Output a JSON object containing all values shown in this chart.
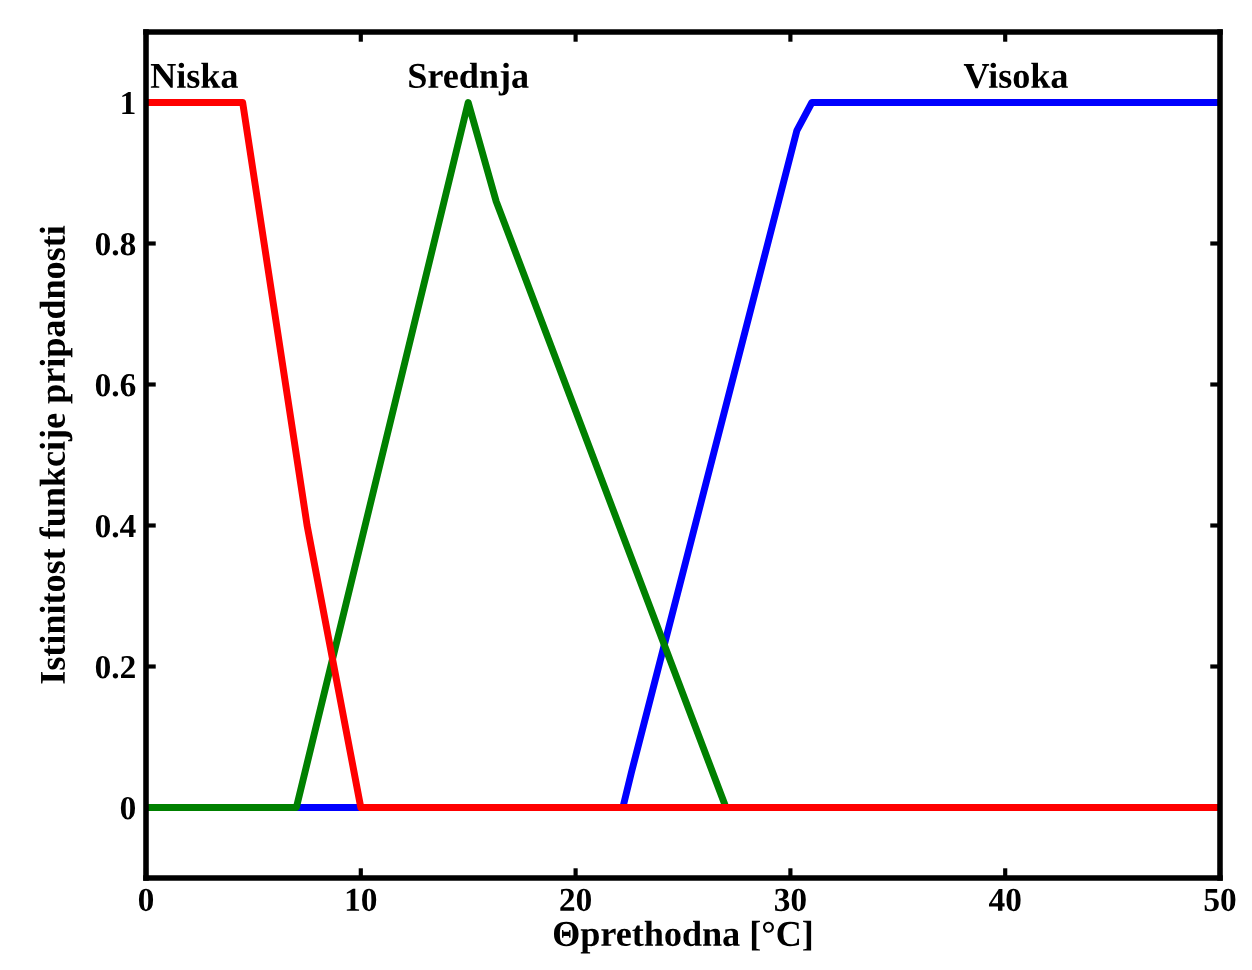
{
  "chart_data": {
    "type": "line",
    "xlabel": "Θprethodna [°C]",
    "ylabel": "Istinitost funkcije pripadnosti",
    "xlim": [
      0,
      50
    ],
    "ylim": [
      -0.1,
      1.1
    ],
    "xticks": [
      0,
      10,
      20,
      30,
      40,
      50
    ],
    "yticks": [
      0,
      0.2,
      0.4,
      0.6,
      0.8,
      1
    ],
    "grid": false,
    "legend": false,
    "marker": "none",
    "line_style": "solid",
    "series": [
      {
        "name": "Visoka",
        "color": "#0000ff",
        "x": [
          0,
          22.2,
          22.6,
          30.3,
          31,
          50
        ],
        "values": [
          0,
          0,
          0.05,
          0.96,
          1,
          1
        ]
      },
      {
        "name": "Srednja",
        "color": "#008000",
        "x": [
          0,
          7,
          15,
          16.3,
          27,
          50
        ],
        "values": [
          0,
          0,
          1,
          0.86,
          0,
          0
        ]
      },
      {
        "name": "Niska",
        "color": "#ff0000",
        "x": [
          0,
          4.5,
          5.5,
          7.5,
          9.5,
          10,
          50
        ],
        "values": [
          1,
          1,
          0.8,
          0.4,
          0.08,
          0,
          0
        ]
      }
    ]
  }
}
